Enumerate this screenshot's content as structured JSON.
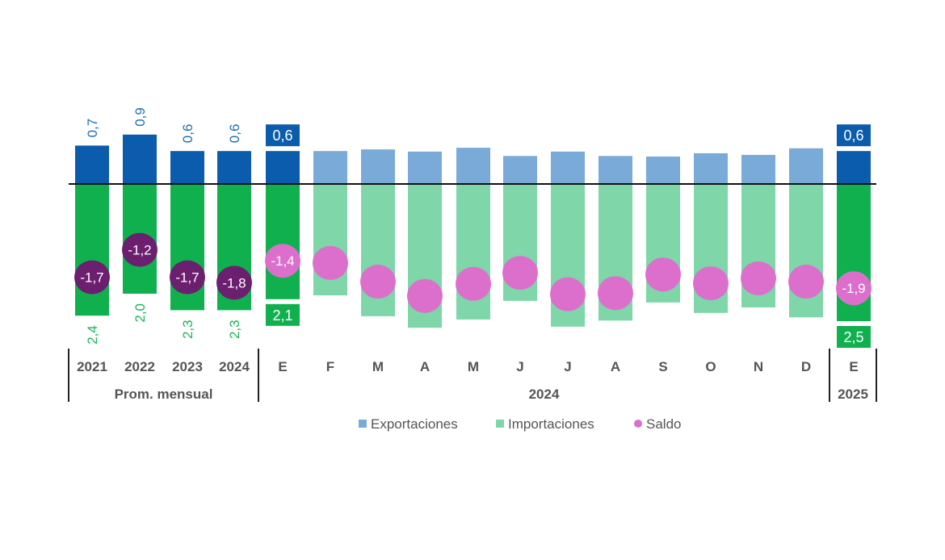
{
  "chart_data": {
    "type": "bar",
    "title": "",
    "xlabel": "",
    "ylabel": "",
    "grid": false,
    "legend_position": "bottom",
    "colors": {
      "exports_highlight": "#0b5cad",
      "exports_light": "#79aad8",
      "imports_highlight": "#10b04f",
      "imports_light": "#7fd6a8",
      "saldo_highlight": "#6b1f6e",
      "saldo_light": "#dd6fcc",
      "export_label": "#1a6fb8",
      "import_label": "#18b45a",
      "axis_text": "#555555"
    },
    "categories": [
      "2021",
      "2022",
      "2023",
      "2024",
      "E",
      "F",
      "M",
      "A",
      "M",
      "J",
      "J",
      "A",
      "S",
      "O",
      "N",
      "D",
      "E"
    ],
    "groups": [
      {
        "label": "Prom. mensual",
        "span": [
          0,
          3
        ]
      },
      {
        "label": "2024",
        "span": [
          4,
          15
        ]
      },
      {
        "label": "2025",
        "span": [
          16,
          16
        ]
      }
    ],
    "highlighted": [
      true,
      true,
      true,
      true,
      true,
      false,
      false,
      false,
      false,
      false,
      false,
      false,
      false,
      false,
      false,
      false,
      true
    ],
    "series": [
      {
        "name": "Exportaciones",
        "values": [
          0.7,
          0.9,
          0.6,
          0.6,
          0.6,
          0.6,
          0.63,
          0.59,
          0.66,
          0.51,
          0.59,
          0.51,
          0.5,
          0.56,
          0.53,
          0.65,
          0.6
        ]
      },
      {
        "name": "Importaciones",
        "values": [
          -2.4,
          -2.0,
          -2.3,
          -2.3,
          -2.1,
          -2.03,
          -2.41,
          -2.62,
          -2.47,
          -2.13,
          -2.6,
          -2.49,
          -2.16,
          -2.35,
          -2.25,
          -2.43,
          -2.5
        ]
      },
      {
        "name": "Saldo",
        "values": [
          -1.7,
          -1.2,
          -1.7,
          -1.8,
          -1.4,
          -1.44,
          -1.78,
          -2.04,
          -1.82,
          -1.62,
          -2.01,
          -1.99,
          -1.65,
          -1.81,
          -1.72,
          -1.78,
          -1.9
        ]
      }
    ],
    "data_labels": {
      "exports": [
        "0,7",
        "0,9",
        "0,6",
        "0,6",
        "0,6",
        "",
        "",
        "",
        "",
        "",
        "",
        "",
        "",
        "",
        "",
        "",
        "0,6"
      ],
      "imports": [
        "2,4",
        "2,0",
        "2,3",
        "2,3",
        "2,1",
        "",
        "",
        "",
        "",
        "",
        "",
        "",
        "",
        "",
        "",
        "",
        "2,5"
      ],
      "saldo": [
        "-1,7",
        "-1,2",
        "-1,7",
        "-1,8",
        "-1,4",
        "",
        "",
        "",
        "",
        "",
        "",
        "",
        "",
        "",
        "",
        "",
        "-1,9"
      ]
    },
    "ylim": [
      -2.8,
      1.2
    ]
  }
}
